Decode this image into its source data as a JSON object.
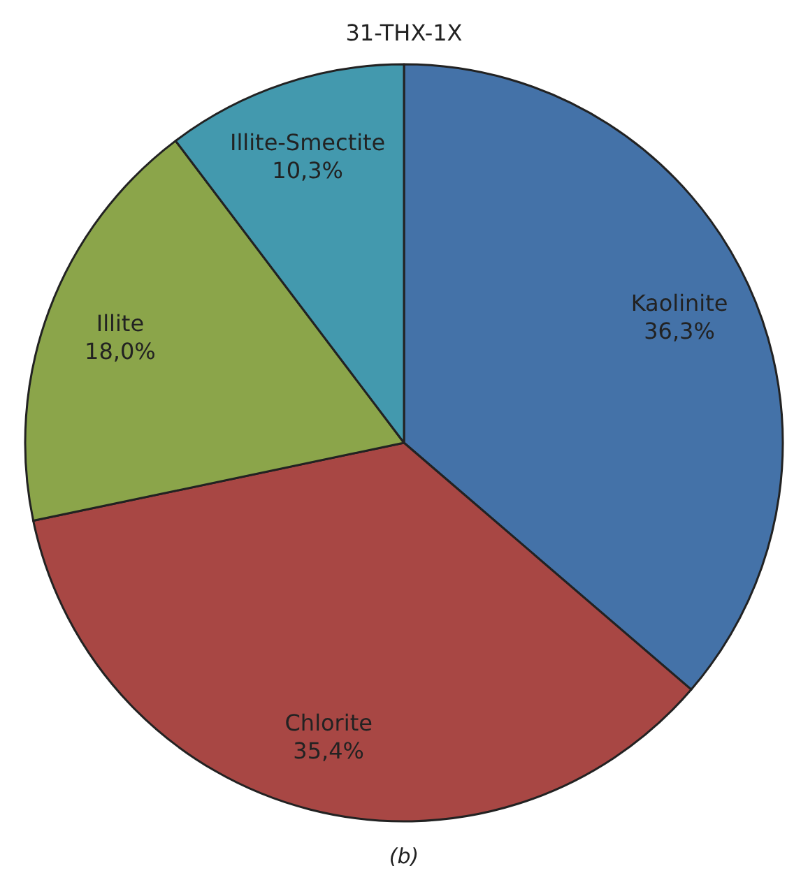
{
  "chart_data": {
    "type": "pie",
    "title": "31-THX-1X",
    "categories": [
      "Kaolinite",
      "Chlorite",
      "Illite",
      "Illite-Smectite"
    ],
    "values": [
      36.3,
      35.4,
      18.0,
      10.3
    ],
    "value_labels": [
      "36,3%",
      "35,4%",
      "18,0%",
      "10,3%"
    ],
    "colors": [
      "#4472a8",
      "#a84744",
      "#8ba54a",
      "#4399ae"
    ],
    "annotations": [
      "(b)"
    ]
  }
}
